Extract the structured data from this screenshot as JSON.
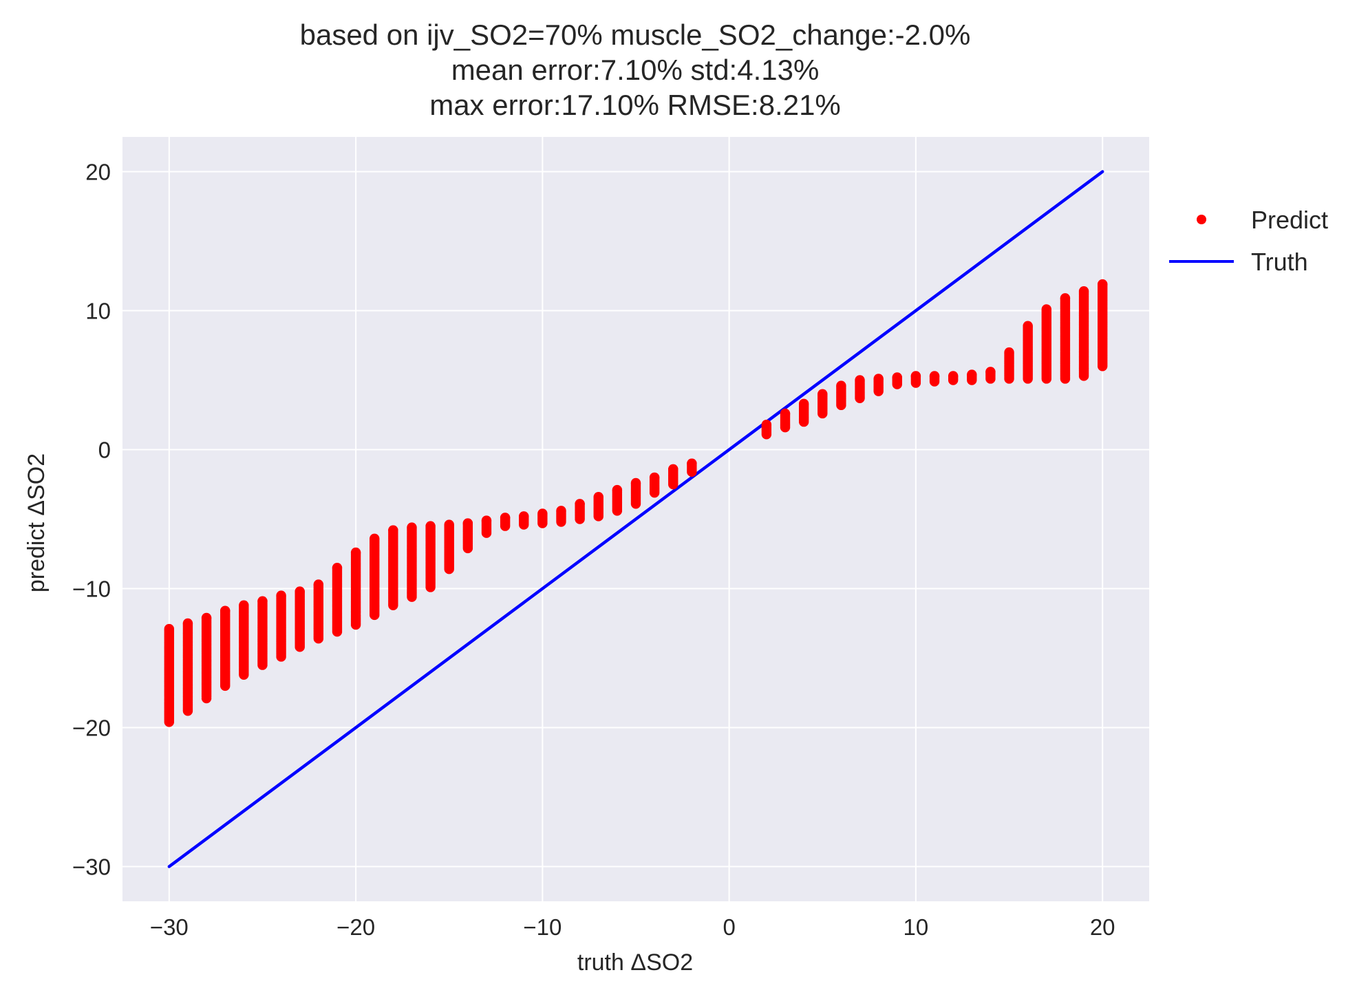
{
  "chart_data": {
    "type": "scatter",
    "title_lines": [
      "based on ijv_SO2=70% muscle_SO2_change:-2.0%",
      "mean error:7.10% std:4.13%",
      "max error:17.10% RMSE:8.21%"
    ],
    "xlabel": "truth ΔSO2",
    "ylabel": "predict ΔSO2",
    "xlim": [
      -32.5,
      22.5
    ],
    "ylim": [
      -32.5,
      22.5
    ],
    "xticks": [
      -30,
      -20,
      -10,
      0,
      10,
      20
    ],
    "yticks": [
      -30,
      -20,
      -10,
      0,
      10,
      20
    ],
    "xtick_labels": [
      "−30",
      "−20",
      "−10",
      "0",
      "10",
      "20"
    ],
    "ytick_labels": [
      "−30",
      "−20",
      "−10",
      "0",
      "10",
      "20"
    ],
    "grid": true,
    "background": "#EAEAF2",
    "legend_placement": "outside-right-top",
    "series": [
      {
        "name": "Predict",
        "kind": "scatter",
        "color": "#FF0000",
        "ranges": [
          {
            "x": -30,
            "y_min": -19.6,
            "y_max": -12.9
          },
          {
            "x": -29,
            "y_min": -18.8,
            "y_max": -12.5
          },
          {
            "x": -28,
            "y_min": -17.9,
            "y_max": -12.1
          },
          {
            "x": -27,
            "y_min": -17.0,
            "y_max": -11.6
          },
          {
            "x": -26,
            "y_min": -16.2,
            "y_max": -11.2
          },
          {
            "x": -25,
            "y_min": -15.5,
            "y_max": -10.9
          },
          {
            "x": -24,
            "y_min": -14.9,
            "y_max": -10.5
          },
          {
            "x": -23,
            "y_min": -14.2,
            "y_max": -10.2
          },
          {
            "x": -22,
            "y_min": -13.6,
            "y_max": -9.7
          },
          {
            "x": -21,
            "y_min": -13.1,
            "y_max": -8.5
          },
          {
            "x": -20,
            "y_min": -12.6,
            "y_max": -7.4
          },
          {
            "x": -19,
            "y_min": -11.9,
            "y_max": -6.4
          },
          {
            "x": -18,
            "y_min": -11.2,
            "y_max": -5.8
          },
          {
            "x": -17,
            "y_min": -10.6,
            "y_max": -5.6
          },
          {
            "x": -16,
            "y_min": -9.9,
            "y_max": -5.5
          },
          {
            "x": -15,
            "y_min": -8.6,
            "y_max": -5.4
          },
          {
            "x": -14,
            "y_min": -7.1,
            "y_max": -5.3
          },
          {
            "x": -13,
            "y_min": -6.0,
            "y_max": -5.1
          },
          {
            "x": -12,
            "y_min": -5.5,
            "y_max": -4.9
          },
          {
            "x": -11,
            "y_min": -5.4,
            "y_max": -4.8
          },
          {
            "x": -10,
            "y_min": -5.3,
            "y_max": -4.6
          },
          {
            "x": -9,
            "y_min": -5.2,
            "y_max": -4.4
          },
          {
            "x": -8,
            "y_min": -5.0,
            "y_max": -3.9
          },
          {
            "x": -7,
            "y_min": -4.8,
            "y_max": -3.4
          },
          {
            "x": -6,
            "y_min": -4.4,
            "y_max": -2.9
          },
          {
            "x": -5,
            "y_min": -3.9,
            "y_max": -2.4
          },
          {
            "x": -4,
            "y_min": -3.1,
            "y_max": -2.0
          },
          {
            "x": -3,
            "y_min": -2.5,
            "y_max": -1.4
          },
          {
            "x": -2,
            "y_min": -1.6,
            "y_max": -1.0
          },
          {
            "x": 2,
            "y_min": 1.1,
            "y_max": 1.8
          },
          {
            "x": 3,
            "y_min": 1.6,
            "y_max": 2.6
          },
          {
            "x": 4,
            "y_min": 2.0,
            "y_max": 3.3
          },
          {
            "x": 5,
            "y_min": 2.6,
            "y_max": 4.0
          },
          {
            "x": 6,
            "y_min": 3.2,
            "y_max": 4.6
          },
          {
            "x": 7,
            "y_min": 3.7,
            "y_max": 5.0
          },
          {
            "x": 8,
            "y_min": 4.2,
            "y_max": 5.1
          },
          {
            "x": 9,
            "y_min": 4.7,
            "y_max": 5.2
          },
          {
            "x": 10,
            "y_min": 4.8,
            "y_max": 5.3
          },
          {
            "x": 11,
            "y_min": 4.9,
            "y_max": 5.3
          },
          {
            "x": 12,
            "y_min": 5.0,
            "y_max": 5.3
          },
          {
            "x": 13,
            "y_min": 5.0,
            "y_max": 5.4
          },
          {
            "x": 14,
            "y_min": 5.1,
            "y_max": 5.6
          },
          {
            "x": 15,
            "y_min": 5.1,
            "y_max": 7.0
          },
          {
            "x": 16,
            "y_min": 5.1,
            "y_max": 8.9
          },
          {
            "x": 17,
            "y_min": 5.1,
            "y_max": 10.1
          },
          {
            "x": 18,
            "y_min": 5.1,
            "y_max": 10.9
          },
          {
            "x": 19,
            "y_min": 5.3,
            "y_max": 11.4
          },
          {
            "x": 20,
            "y_min": 6.0,
            "y_max": 11.9
          }
        ]
      },
      {
        "name": "Truth",
        "kind": "line",
        "color": "#0000FF",
        "x": [
          -30,
          20
        ],
        "y": [
          -30,
          20
        ]
      }
    ]
  }
}
